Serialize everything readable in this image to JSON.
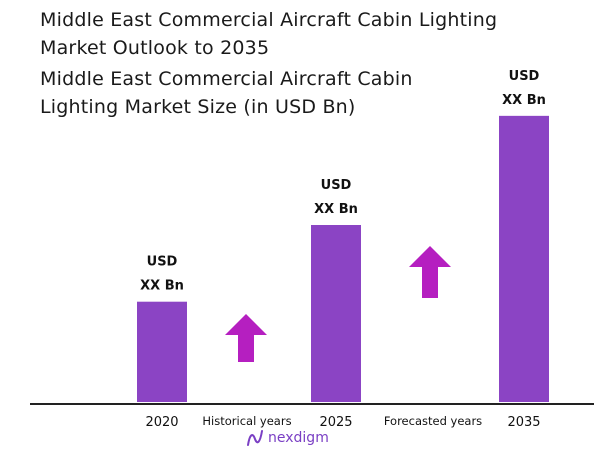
{
  "page": {
    "title": "Middle East Commercial Aircraft Cabin Lighting Market Outlook to 2035",
    "subtitle": "Middle East Commercial Aircraft Cabin Lighting Market Size (in USD Bn)",
    "brand": "nexdigm"
  },
  "chart_data": {
    "type": "bar",
    "categories": [
      "2020",
      "2025",
      "2035"
    ],
    "values": [
      3.4,
      6.0,
      9.7
    ],
    "bar_labels": [
      [
        "USD",
        "XX Bn"
      ],
      [
        "USD",
        "XX Bn"
      ],
      [
        "USD",
        "XX Bn"
      ]
    ],
    "annotations": [
      "Historical years",
      "Forecasted years"
    ],
    "bar_color": "#8b44c4",
    "arrow_color": "#b51fc0",
    "grid": false,
    "axis_visible": false
  }
}
